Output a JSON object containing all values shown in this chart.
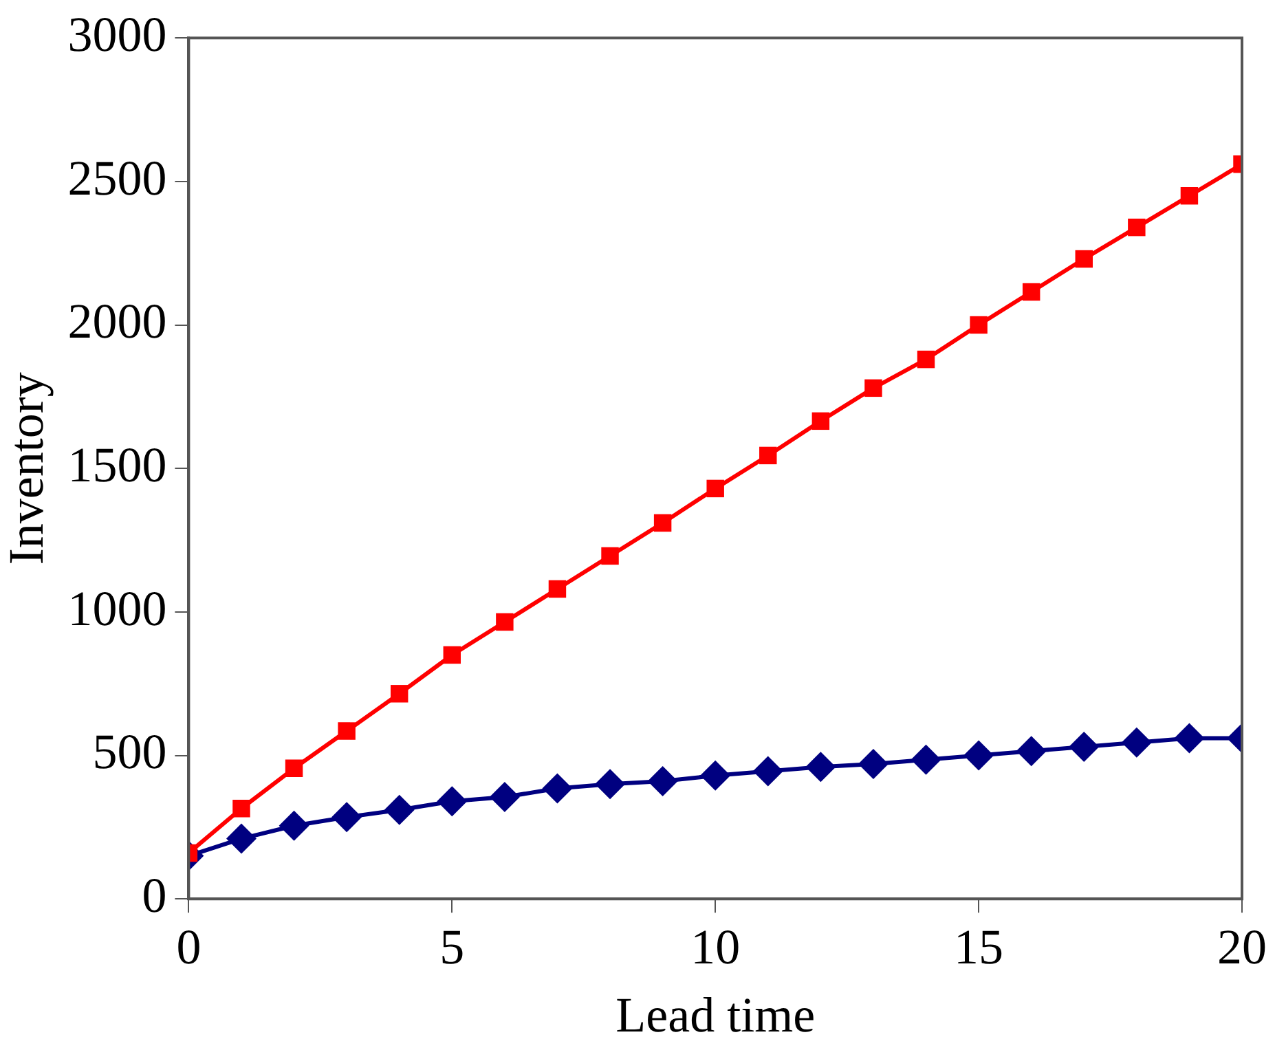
{
  "chart_data": {
    "type": "line",
    "xlabel": "Lead time",
    "ylabel": "Inventory",
    "x": [
      0,
      1,
      2,
      3,
      4,
      5,
      6,
      7,
      8,
      9,
      10,
      11,
      12,
      13,
      14,
      15,
      16,
      17,
      18,
      19,
      20
    ],
    "series": [
      {
        "color": "#ff0000",
        "marker": "square",
        "values": [
          160,
          315,
          455,
          585,
          715,
          850,
          965,
          1080,
          1195,
          1310,
          1430,
          1545,
          1665,
          1780,
          1880,
          2000,
          2115,
          2230,
          2340,
          2450,
          2560
        ]
      },
      {
        "color": "#000080",
        "marker": "diamond",
        "values": [
          150,
          210,
          255,
          285,
          310,
          340,
          355,
          385,
          400,
          410,
          430,
          445,
          460,
          470,
          485,
          500,
          515,
          530,
          545,
          560,
          560
        ]
      }
    ],
    "xlim": [
      0,
      20
    ],
    "xticks": [
      0,
      5,
      10,
      15,
      20
    ],
    "ylim": [
      0,
      3000
    ],
    "yticks": [
      0,
      500,
      1000,
      1500,
      2000,
      2500,
      3000
    ],
    "grid": false,
    "legend": false,
    "line_style": "solid"
  }
}
